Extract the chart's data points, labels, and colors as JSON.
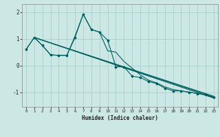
{
  "xlabel": "Humidex (Indice chaleur)",
  "bg_color": "#cce8e5",
  "grid_color": "#aacfcc",
  "line_color": "#006060",
  "xlim": [
    -0.5,
    23.5
  ],
  "ylim": [
    -1.55,
    2.3
  ],
  "yticks": [
    -1,
    0,
    1,
    2
  ],
  "xticks": [
    0,
    1,
    2,
    3,
    4,
    5,
    6,
    7,
    8,
    9,
    10,
    11,
    12,
    13,
    14,
    15,
    16,
    17,
    18,
    19,
    20,
    21,
    22,
    23
  ],
  "jagged_x": [
    0,
    1,
    2,
    3,
    4,
    5,
    6,
    7,
    8,
    9,
    10,
    11,
    12,
    13,
    14,
    15,
    16,
    17,
    18,
    19,
    20,
    21,
    22,
    23
  ],
  "jagged_y": [
    0.6,
    1.05,
    0.75,
    0.4,
    0.38,
    0.38,
    1.05,
    1.92,
    1.35,
    1.25,
    0.95,
    -0.05,
    -0.05,
    -0.4,
    -0.45,
    -0.6,
    -0.68,
    -0.85,
    -0.95,
    -0.95,
    -1.0,
    -1.05,
    -1.1,
    -1.2
  ],
  "smooth_x": [
    0,
    1,
    2,
    3,
    4,
    5,
    6,
    7,
    8,
    9,
    10,
    11,
    12,
    13,
    14,
    15,
    16,
    17,
    18,
    19,
    20,
    21,
    22,
    23
  ],
  "smooth_y": [
    0.6,
    1.05,
    0.75,
    0.4,
    0.38,
    0.38,
    1.1,
    1.92,
    1.35,
    1.25,
    0.55,
    0.5,
    0.15,
    -0.1,
    -0.35,
    -0.55,
    -0.65,
    -0.8,
    -0.9,
    -0.95,
    -1.0,
    -1.05,
    -1.1,
    -1.2
  ],
  "reg_lines": [
    {
      "x0": 1.0,
      "y0": 1.05,
      "x1": 23,
      "y1": -1.22
    },
    {
      "x0": 1.0,
      "y0": 1.05,
      "x1": 23,
      "y1": -1.18
    },
    {
      "x0": 1.0,
      "y0": 1.05,
      "x1": 23,
      "y1": -1.15
    }
  ]
}
